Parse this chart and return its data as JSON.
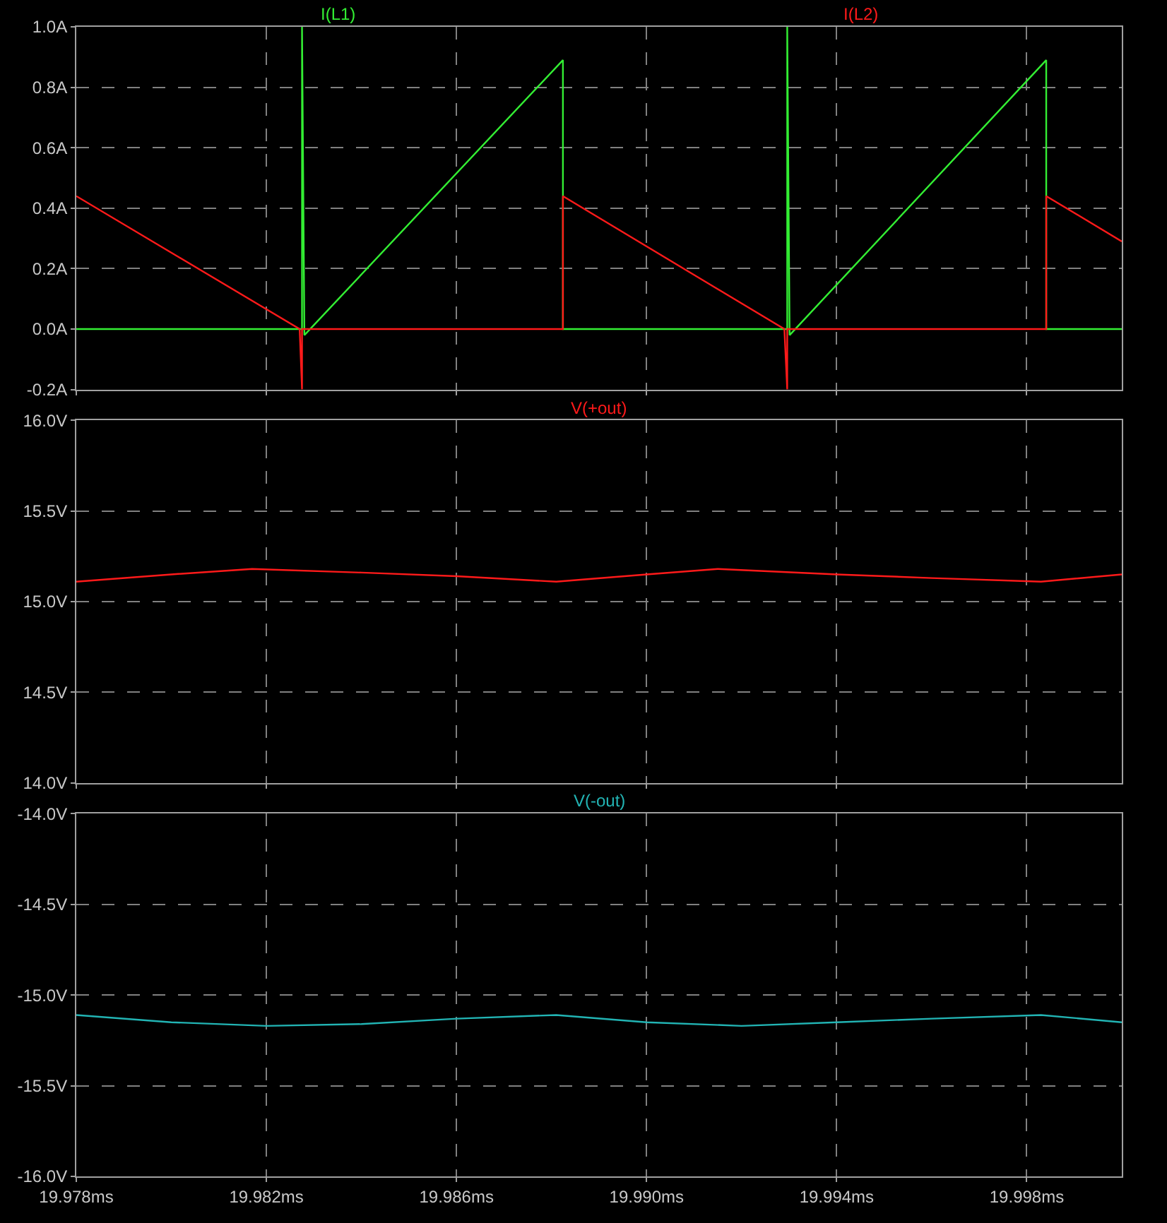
{
  "chart_data": [
    {
      "type": "line",
      "x": [
        19.978,
        19.98275,
        19.98275,
        19.9828,
        19.98824,
        19.98824,
        19.99296,
        19.99296,
        19.99301,
        19.99841,
        19.99841,
        20.0
      ],
      "series": [
        {
          "name": "I(L1)",
          "color": "#33ee33",
          "values": [
            0,
            0,
            1.0,
            -0.02,
            0.89,
            0,
            0,
            1.0,
            -0.02,
            0.89,
            0,
            0
          ]
        },
        {
          "name": "I(L2)",
          "color": "#ff1a1a",
          "x": [
            19.978,
            19.9827,
            19.98275,
            19.98275,
            19.98824,
            19.98824,
            19.9929,
            19.99296,
            19.99296,
            19.99841,
            19.99841,
            20.0
          ],
          "values": [
            0.44,
            0,
            -0.2,
            0,
            0,
            0.44,
            0,
            -0.2,
            0,
            0,
            0.44,
            0.29
          ]
        }
      ],
      "xlim": [
        19.978,
        20.0
      ],
      "xticks": [
        {
          "value": 19.978,
          "label": null
        },
        {
          "value": 19.982,
          "label": null
        },
        {
          "value": 19.986,
          "label": null
        },
        {
          "value": 19.99,
          "label": null
        },
        {
          "value": 19.994,
          "label": null
        },
        {
          "value": 19.998,
          "label": null
        }
      ],
      "ylim": [
        -0.2,
        1.0
      ],
      "yticks": [
        {
          "value": -0.2,
          "label": "-0.2A"
        },
        {
          "value": 0,
          "label": "0.0A"
        },
        {
          "value": 0.2,
          "label": "0.2A"
        },
        {
          "value": 0.4,
          "label": "0.4A"
        },
        {
          "value": 0.6,
          "label": "0.6A"
        },
        {
          "value": 0.8,
          "label": "0.8A"
        },
        {
          "value": 1.0,
          "label": "1.0A"
        }
      ],
      "grid": true,
      "tick_labels": "y",
      "line_style": "solid"
    },
    {
      "type": "line",
      "x": [
        19.978,
        19.98,
        19.9817,
        19.984,
        19.986,
        19.9881,
        19.99,
        19.9915,
        19.994,
        19.996,
        19.9983,
        20.0
      ],
      "series": [
        {
          "name": "V(+out)",
          "color": "#ff1a1a",
          "values": [
            15.11,
            15.15,
            15.18,
            15.16,
            15.14,
            15.11,
            15.15,
            15.18,
            15.15,
            15.13,
            15.11,
            15.15
          ]
        }
      ],
      "xlim": [
        19.978,
        20.0
      ],
      "xticks": [
        {
          "value": 19.978,
          "label": null
        },
        {
          "value": 19.982,
          "label": null
        },
        {
          "value": 19.986,
          "label": null
        },
        {
          "value": 19.99,
          "label": null
        },
        {
          "value": 19.994,
          "label": null
        },
        {
          "value": 19.998,
          "label": null
        }
      ],
      "ylim": [
        14.0,
        16.0
      ],
      "yticks": [
        {
          "value": 14.0,
          "label": "14.0V"
        },
        {
          "value": 14.5,
          "label": "14.5V"
        },
        {
          "value": 15.0,
          "label": "15.0V"
        },
        {
          "value": 15.5,
          "label": "15.5V"
        },
        {
          "value": 16.0,
          "label": "16.0V"
        }
      ],
      "grid": true,
      "tick_labels": "y",
      "line_style": "solid"
    },
    {
      "type": "line",
      "x": [
        19.978,
        19.98,
        19.982,
        19.984,
        19.986,
        19.9881,
        19.99,
        19.992,
        19.994,
        19.996,
        19.9983,
        20.0
      ],
      "series": [
        {
          "name": "V(-out)",
          "color": "#22b4b4",
          "values": [
            -15.11,
            -15.15,
            -15.17,
            -15.16,
            -15.13,
            -15.11,
            -15.15,
            -15.17,
            -15.15,
            -15.13,
            -15.11,
            -15.15
          ]
        }
      ],
      "xlim": [
        19.978,
        20.0
      ],
      "xticks": [
        {
          "value": 19.978,
          "label": "19.978ms"
        },
        {
          "value": 19.982,
          "label": "19.982ms"
        },
        {
          "value": 19.986,
          "label": "19.986ms"
        },
        {
          "value": 19.99,
          "label": "19.990ms"
        },
        {
          "value": 19.994,
          "label": "19.994ms"
        },
        {
          "value": 19.998,
          "label": "19.998ms"
        }
      ],
      "ylim": [
        -16.0,
        -14.0
      ],
      "yticks": [
        {
          "value": -16.0,
          "label": "-16.0V"
        },
        {
          "value": -15.5,
          "label": "-15.5V"
        },
        {
          "value": -15.0,
          "label": "-15.0V"
        },
        {
          "value": -14.5,
          "label": "-14.5V"
        },
        {
          "value": -14.0,
          "label": "-14.0V"
        }
      ],
      "grid": true,
      "line_style": "solid"
    }
  ]
}
